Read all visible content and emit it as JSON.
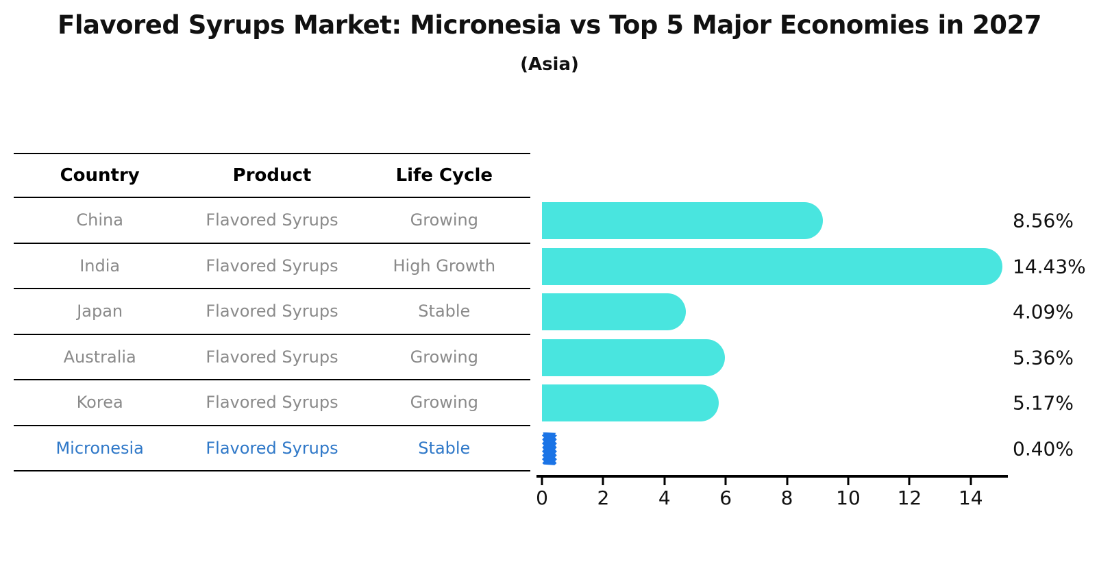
{
  "title": "Flavored Syrups Market: Micronesia vs Top 5 Major Economies in 2027",
  "subtitle": "(Asia)",
  "table": {
    "headers": [
      "Country",
      "Product",
      "Life Cycle"
    ],
    "rows": [
      {
        "country": "China",
        "product": "Flavored Syrups",
        "life_cycle": "Growing",
        "highlighted": false
      },
      {
        "country": "India",
        "product": "Flavored Syrups",
        "life_cycle": "High Growth",
        "highlighted": false
      },
      {
        "country": "Japan",
        "product": "Flavored Syrups",
        "life_cycle": "Stable",
        "highlighted": false
      },
      {
        "country": "Australia",
        "product": "Flavored Syrups",
        "life_cycle": "Growing",
        "highlighted": false
      },
      {
        "country": "Korea",
        "product": "Flavored Syrups",
        "life_cycle": "Growing",
        "highlighted": false
      },
      {
        "country": "Micronesia",
        "product": "Flavored Syrups",
        "life_cycle": "Stable",
        "highlighted": true
      }
    ]
  },
  "chart_data": {
    "type": "bar",
    "orientation": "horizontal",
    "title": "Flavored Syrups Market: Micronesia vs Top 5 Major Economies in 2027 (Asia)",
    "categories": [
      "China",
      "India",
      "Japan",
      "Australia",
      "Korea",
      "Micronesia"
    ],
    "values": [
      8.56,
      14.43,
      4.09,
      5.36,
      5.17,
      0.4
    ],
    "value_labels": [
      "8.56%",
      "14.43%",
      "4.09%",
      "5.36%",
      "5.17%",
      "0.40%"
    ],
    "xlabel": "",
    "ylabel": "",
    "xlim": [
      0,
      15.2
    ],
    "x_ticks": [
      0,
      2,
      4,
      6,
      8,
      10,
      12,
      14
    ],
    "grid": false,
    "legend": "none",
    "highlight_index": 5
  },
  "colors": {
    "bar_teal": "#49E5DF",
    "bar_blue": "#1B74E6",
    "highlight_text_blue": "#2F78C8",
    "text_gray": "#8a8a8a",
    "axis_black": "#000000"
  }
}
